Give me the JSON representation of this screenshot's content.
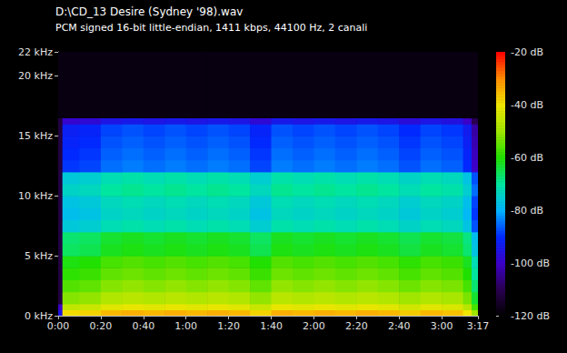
{
  "chart_data": {
    "type": "heatmap",
    "title": "D:\\CD_13 Desire (Sydney '98).wav",
    "subtitle": "PCM signed 16-bit little-endian, 1411 kbps, 44100 Hz, 2 canali",
    "grid": false,
    "xlim": [
      0,
      197
    ],
    "xticks": [
      {
        "value": 0,
        "label": "0:00"
      },
      {
        "value": 20,
        "label": "0:20"
      },
      {
        "value": 40,
        "label": "0:40"
      },
      {
        "value": 60,
        "label": "1:00"
      },
      {
        "value": 80,
        "label": "1:20"
      },
      {
        "value": 100,
        "label": "1:40"
      },
      {
        "value": 120,
        "label": "2:00"
      },
      {
        "value": 140,
        "label": "2:20"
      },
      {
        "value": 160,
        "label": "2:40"
      },
      {
        "value": 180,
        "label": "3:00"
      },
      {
        "value": 197,
        "label": "3:17"
      }
    ],
    "ylim": [
      0,
      22
    ],
    "yticks": [
      {
        "value": 0,
        "label": "0 kHz"
      },
      {
        "value": 5,
        "label": "5 kHz"
      },
      {
        "value": 10,
        "label": "10 kHz"
      },
      {
        "value": 15,
        "label": "15 kHz"
      },
      {
        "value": 20,
        "label": "20 kHz"
      },
      {
        "value": 22,
        "label": "22 kHz"
      }
    ],
    "clim": [
      -120,
      -20
    ],
    "cticks": [
      {
        "value": -120,
        "label": "-120 dB"
      },
      {
        "value": -100,
        "label": "-100 dB"
      },
      {
        "value": -80,
        "label": "-80 dB"
      },
      {
        "value": -60,
        "label": "-60 dB"
      },
      {
        "value": -40,
        "label": "-40 dB"
      },
      {
        "value": -20,
        "label": "-20 dB"
      }
    ],
    "x_bins": [
      0,
      2,
      10,
      20,
      30,
      40,
      50,
      60,
      70,
      80,
      90,
      100,
      110,
      120,
      130,
      140,
      150,
      160,
      170,
      180,
      190,
      194,
      197
    ],
    "y_bins": [
      0,
      0.5,
      1,
      2,
      3,
      4,
      5,
      6,
      7,
      8,
      9,
      10,
      11,
      12,
      13,
      14,
      15,
      16,
      16.5,
      22
    ],
    "cells": [
      [
        -95,
        -39,
        -38,
        -35,
        -34,
        -35,
        -34,
        -35,
        -34,
        -35,
        -38,
        -34,
        -35,
        -34,
        -35,
        -34,
        -35,
        -37,
        -35,
        -36,
        -40,
        -50
      ],
      [
        -100,
        -46,
        -45,
        -42,
        -41,
        -42,
        -41,
        -42,
        -41,
        -42,
        -45,
        -41,
        -42,
        -41,
        -42,
        -41,
        -42,
        -44,
        -42,
        -43,
        -47,
        -57
      ],
      [
        -112,
        -52,
        -51,
        -48,
        -47,
        -48,
        -47,
        -48,
        -47,
        -48,
        -51,
        -47,
        -48,
        -47,
        -48,
        -47,
        -48,
        -50,
        -48,
        -49,
        -53,
        -63
      ],
      [
        -112,
        -56,
        -55,
        -52,
        -51,
        -52,
        -51,
        -52,
        -51,
        -52,
        -55,
        -51,
        -52,
        -51,
        -52,
        -51,
        -52,
        -54,
        -52,
        -53,
        -57,
        -67
      ],
      [
        -112,
        -59,
        -58,
        -55,
        -54,
        -55,
        -54,
        -55,
        -54,
        -55,
        -58,
        -54,
        -55,
        -54,
        -55,
        -54,
        -55,
        -57,
        -55,
        -56,
        -60,
        -70
      ],
      [
        -112,
        -61,
        -60,
        -57,
        -56,
        -57,
        -56,
        -57,
        -56,
        -57,
        -60,
        -56,
        -57,
        -56,
        -57,
        -56,
        -57,
        -59,
        -57,
        -58,
        -62,
        -72
      ],
      [
        -112,
        -66,
        -65,
        -62,
        -61,
        -62,
        -61,
        -62,
        -61,
        -62,
        -65,
        -61,
        -62,
        -61,
        -62,
        -61,
        -62,
        -64,
        -62,
        -63,
        -67,
        -77
      ],
      [
        -112,
        -67,
        -66,
        -63,
        -62,
        -63,
        -62,
        -63,
        -62,
        -63,
        -66,
        -62,
        -63,
        -62,
        -63,
        -62,
        -63,
        -65,
        -63,
        -64,
        -68,
        -78
      ],
      [
        -112,
        -76,
        -75,
        -72,
        -71,
        -72,
        -71,
        -72,
        -71,
        -72,
        -75,
        -71,
        -72,
        -71,
        -72,
        -71,
        -72,
        -74,
        -72,
        -73,
        -77,
        -87
      ],
      [
        -112,
        -78,
        -77,
        -74,
        -73,
        -74,
        -73,
        -74,
        -73,
        -74,
        -77,
        -73,
        -74,
        -73,
        -74,
        -73,
        -74,
        -76,
        -74,
        -75,
        -79,
        -89
      ],
      [
        -112,
        -77,
        -76,
        -73,
        -72,
        -73,
        -72,
        -73,
        -72,
        -73,
        -76,
        -72,
        -73,
        -72,
        -73,
        -72,
        -73,
        -75,
        -73,
        -74,
        -78,
        -88
      ],
      [
        -112,
        -74,
        -73,
        -70,
        -69,
        -70,
        -69,
        -70,
        -69,
        -70,
        -73,
        -69,
        -70,
        -69,
        -70,
        -69,
        -70,
        -72,
        -70,
        -71,
        -75,
        -85
      ],
      [
        -112,
        -76,
        -75,
        -72,
        -71,
        -72,
        -71,
        -72,
        -71,
        -72,
        -75,
        -71,
        -72,
        -71,
        -72,
        -71,
        -72,
        -74,
        -72,
        -73,
        -77,
        -87
      ],
      [
        -112,
        -89,
        -88,
        -85,
        -84,
        -85,
        -84,
        -85,
        -84,
        -85,
        -88,
        -84,
        -85,
        -84,
        -85,
        -84,
        -85,
        -87,
        -85,
        -86,
        -90,
        -100
      ],
      [
        -112,
        -90,
        -89,
        -86,
        -85,
        -86,
        -85,
        -86,
        -85,
        -86,
        -89,
        -85,
        -86,
        -85,
        -86,
        -85,
        -86,
        -88,
        -86,
        -87,
        -91,
        -101
      ],
      [
        -112,
        -91,
        -90,
        -87,
        -86,
        -87,
        -86,
        -87,
        -86,
        -87,
        -90,
        -86,
        -87,
        -86,
        -87,
        -86,
        -87,
        -89,
        -87,
        -88,
        -92,
        -102
      ],
      [
        -112,
        -92,
        -91,
        -88,
        -87,
        -88,
        -87,
        -88,
        -87,
        -88,
        -91,
        -87,
        -88,
        -87,
        -88,
        -87,
        -88,
        -90,
        -88,
        -89,
        -93,
        -103
      ],
      [
        -112,
        -99,
        -98,
        -95,
        -94,
        -95,
        -94,
        -95,
        -94,
        -95,
        -98,
        -94,
        -95,
        -94,
        -95,
        -94,
        -95,
        -97,
        -95,
        -96,
        -100,
        -110
      ],
      [
        -118,
        -118,
        -118,
        -118,
        -118,
        -118,
        -118,
        -118,
        -118,
        -118,
        -118,
        -118,
        -118,
        -118,
        -118,
        -118,
        -118,
        -118,
        -118,
        -118,
        -118,
        -118
      ]
    ]
  }
}
